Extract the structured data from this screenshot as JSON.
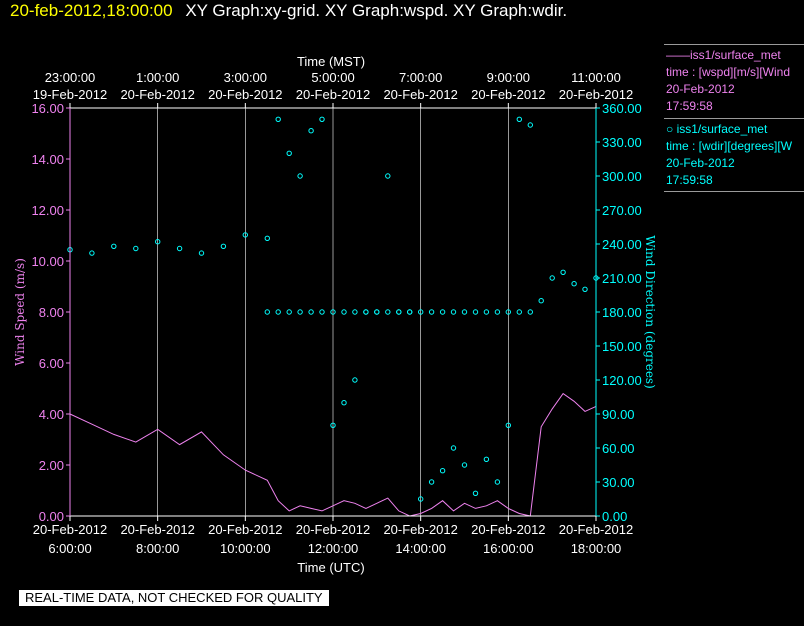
{
  "header": {
    "datetime": "20-feb-2012,18:00:00",
    "graphs": "XY Graph:xy-grid.  XY Graph:wspd.  XY Graph:wdir."
  },
  "legend": {
    "entries": [
      {
        "line1": "——iss1/surface_met",
        "line2": "time : [wspd][m/s][Wind",
        "line3": "20-Feb-2012",
        "line4": "17:59:58",
        "color": "#ee82ee"
      },
      {
        "line1": "○ iss1/surface_met",
        "line2": "time : [wdir][degrees][W",
        "line3": "20-Feb-2012",
        "line4": "17:59:58",
        "color": "#00ffff"
      }
    ]
  },
  "quality_notice": "REAL-TIME DATA, NOT CHECKED FOR QUALITY",
  "colors": {
    "background": "#000000",
    "axis": "#ffffff",
    "wspd": "#ee82ee",
    "wdir": "#00ffff",
    "datetime": "#ffff00"
  },
  "chart_data": {
    "type": "line",
    "title": "",
    "x_bottom": {
      "label": "Time (UTC)",
      "ticks": [
        {
          "date": "20-Feb-2012",
          "time": "6:00:00"
        },
        {
          "date": "20-Feb-2012",
          "time": "8:00:00"
        },
        {
          "date": "20-Feb-2012",
          "time": "10:00:00"
        },
        {
          "date": "20-Feb-2012",
          "time": "12:00:00"
        },
        {
          "date": "20-Feb-2012",
          "time": "14:00:00"
        },
        {
          "date": "20-Feb-2012",
          "time": "16:00:00"
        },
        {
          "date": "20-Feb-2012",
          "time": "18:00:00"
        }
      ],
      "xlim": [
        "20-Feb-2012 6:00:00",
        "20-Feb-2012 18:00:00"
      ]
    },
    "x_top": {
      "label": "Time (MST)",
      "ticks": [
        {
          "time": "23:00:00",
          "date": "19-Feb-2012"
        },
        {
          "time": "1:00:00",
          "date": "20-Feb-2012"
        },
        {
          "time": "3:00:00",
          "date": "20-Feb-2012"
        },
        {
          "time": "5:00:00",
          "date": "20-Feb-2012"
        },
        {
          "time": "7:00:00",
          "date": "20-Feb-2012"
        },
        {
          "time": "9:00:00",
          "date": "20-Feb-2012"
        },
        {
          "time": "11:00:00",
          "date": "20-Feb-2012"
        }
      ]
    },
    "y_left": {
      "label": "Wind Speed (m/s)",
      "ylim": [
        0,
        16
      ],
      "ticks": [
        "0.00",
        "2.00",
        "4.00",
        "6.00",
        "8.00",
        "10.00",
        "12.00",
        "14.00",
        "16.00"
      ]
    },
    "y_right": {
      "label": "Wind Direction (degrees)",
      "ylim": [
        0,
        360
      ],
      "ticks": [
        "0.00",
        "30.00",
        "60.00",
        "90.00",
        "120.00",
        "150.00",
        "180.00",
        "210.00",
        "240.00",
        "270.00",
        "300.00",
        "330.00",
        "360.00"
      ]
    },
    "grid": {
      "vertical": true,
      "horizontal": false
    },
    "series": [
      {
        "name": "iss1/surface_met time : [wspd][m/s][Wind",
        "axis": "left",
        "style": "line",
        "color": "#ee82ee",
        "x_hours_utc": [
          6.0,
          6.5,
          7.0,
          7.5,
          8.0,
          8.5,
          9.0,
          9.5,
          10.0,
          10.5,
          10.75,
          11.0,
          11.25,
          11.5,
          11.75,
          12.0,
          12.25,
          12.5,
          12.75,
          13.0,
          13.25,
          13.5,
          13.75,
          14.0,
          14.25,
          14.5,
          14.75,
          15.0,
          15.25,
          15.5,
          15.75,
          16.0,
          16.25,
          16.5,
          16.75,
          17.0,
          17.25,
          17.5,
          17.75,
          18.0
        ],
        "values": [
          4.0,
          3.6,
          3.2,
          2.9,
          3.4,
          2.8,
          3.3,
          2.4,
          1.8,
          1.4,
          0.6,
          0.2,
          0.4,
          0.3,
          0.2,
          0.4,
          0.6,
          0.5,
          0.3,
          0.5,
          0.7,
          0.2,
          0.0,
          0.1,
          0.3,
          0.6,
          0.2,
          0.5,
          0.3,
          0.4,
          0.6,
          0.3,
          0.1,
          0.0,
          3.5,
          4.2,
          4.8,
          4.5,
          4.1,
          4.3
        ]
      },
      {
        "name": "iss1/surface_met time : [wdir][degrees][W",
        "axis": "right",
        "style": "scatter",
        "color": "#00ffff",
        "x_hours_utc": [
          6.0,
          6.5,
          7.0,
          7.5,
          8.0,
          8.5,
          9.0,
          9.5,
          10.0,
          10.5,
          10.75,
          11.0,
          11.25,
          11.5,
          11.75,
          12.0,
          12.25,
          12.5,
          12.75,
          13.0,
          13.25,
          13.5,
          13.75,
          14.0,
          14.25,
          14.5,
          14.75,
          15.0,
          15.25,
          15.5,
          15.75,
          16.0,
          16.25,
          16.5,
          16.75,
          17.0,
          17.25,
          17.5,
          17.75,
          18.0
        ],
        "values": [
          235,
          232,
          238,
          236,
          242,
          236,
          232,
          238,
          248,
          245,
          350,
          320,
          300,
          340,
          350,
          80,
          100,
          120,
          180,
          180,
          300,
          180,
          180,
          15,
          30,
          40,
          60,
          45,
          20,
          50,
          30,
          80,
          350,
          345,
          190,
          210,
          215,
          205,
          200,
          210
        ]
      },
      {
        "name": "",
        "axis": "right",
        "style": "scatter",
        "color": "#00ffff",
        "x_hours_utc": [
          10.5,
          10.75,
          11.0,
          11.25,
          11.5,
          11.75,
          12.0,
          12.25,
          12.5,
          12.75,
          13.0,
          13.25,
          13.5,
          13.75,
          14.0,
          14.25,
          14.5,
          14.75,
          15.0,
          15.25,
          15.5,
          15.75,
          16.0,
          16.25,
          16.5
        ],
        "values": [
          180,
          180,
          180,
          180,
          180,
          180,
          180,
          180,
          180,
          180,
          180,
          180,
          180,
          180,
          180,
          180,
          180,
          180,
          180,
          180,
          180,
          180,
          180,
          180,
          180
        ]
      }
    ]
  }
}
